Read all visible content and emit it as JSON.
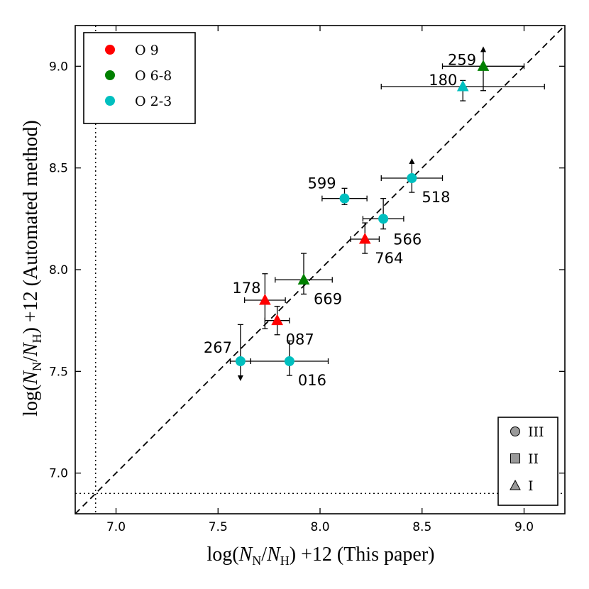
{
  "chart_data": {
    "type": "scatter",
    "xlabel_parts": {
      "pre": "log(",
      "num": "N",
      "num_sub": "N",
      "slash": "/",
      "den": "N",
      "den_sub": "H",
      "post": ") +12 (This paper)"
    },
    "ylabel_parts": {
      "pre": "log(",
      "num": "N",
      "num_sub": "N",
      "slash": "/",
      "den": "N",
      "den_sub": "H",
      "post": ") +12 (Automated method)"
    },
    "xlim": [
      6.8,
      9.2
    ],
    "ylim": [
      6.8,
      9.2
    ],
    "xticks": [
      7.0,
      7.5,
      8.0,
      8.5,
      9.0
    ],
    "yticks": [
      7.0,
      7.5,
      8.0,
      8.5,
      9.0
    ],
    "xtick_labels": [
      "7.0",
      "7.5",
      "8.0",
      "8.5",
      "9.0"
    ],
    "ytick_labels": [
      "7.0",
      "7.5",
      "8.0",
      "8.5",
      "9.0"
    ],
    "one_to_one_line": true,
    "detection_limit": {
      "x": 6.9,
      "y": 6.9
    },
    "colors": {
      "O 9": "#ff0000",
      "O 6-8": "#008000",
      "O 2-3": "#00bfbf"
    },
    "legend_spectral": {
      "placement": "top-left",
      "entries": [
        {
          "label": "O 9",
          "color": "#ff0000"
        },
        {
          "label": "O 6-8",
          "color": "#008000"
        },
        {
          "label": "O 2-3",
          "color": "#00bfbf"
        }
      ]
    },
    "legend_lum": {
      "placement": "bottom-right",
      "entries": [
        {
          "label": "III",
          "marker": "circle"
        },
        {
          "label": "II",
          "marker": "square"
        },
        {
          "label": "I",
          "marker": "triangle"
        }
      ]
    },
    "points": [
      {
        "label": "259",
        "x": 8.8,
        "y": 9.0,
        "xerr": [
          0.2,
          0.2
        ],
        "yerr": [
          0.12,
          0.0
        ],
        "limit": "lower",
        "marker": "triangle",
        "group": "O 6-8"
      },
      {
        "label": "180",
        "x": 8.7,
        "y": 8.9,
        "xerr": [
          0.4,
          0.4
        ],
        "yerr": [
          0.07,
          0.03
        ],
        "limit": null,
        "marker": "triangle",
        "group": "O 2-3"
      },
      {
        "label": "518",
        "x": 8.45,
        "y": 8.45,
        "xerr": [
          0.15,
          0.15
        ],
        "yerr": [
          0.07,
          0.0
        ],
        "limit": "lower",
        "marker": "circle",
        "group": "O 2-3"
      },
      {
        "label": "599",
        "x": 8.12,
        "y": 8.35,
        "xerr": [
          0.11,
          0.11
        ],
        "yerr": [
          0.03,
          0.05
        ],
        "limit": null,
        "marker": "circle",
        "group": "O 2-3"
      },
      {
        "label": "566",
        "x": 8.31,
        "y": 8.25,
        "xerr": [
          0.1,
          0.1
        ],
        "yerr": [
          0.05,
          0.1
        ],
        "limit": null,
        "marker": "circle",
        "group": "O 2-3"
      },
      {
        "label": "764",
        "x": 8.22,
        "y": 8.15,
        "xerr": [
          0.07,
          0.07
        ],
        "yerr": [
          0.07,
          0.08
        ],
        "limit": null,
        "marker": "triangle",
        "group": "O 9"
      },
      {
        "label": "669",
        "x": 7.92,
        "y": 7.95,
        "xerr": [
          0.14,
          0.14
        ],
        "yerr": [
          0.07,
          0.13
        ],
        "limit": null,
        "marker": "triangle",
        "group": "O 6-8"
      },
      {
        "label": "178",
        "x": 7.73,
        "y": 7.85,
        "xerr": [
          0.1,
          0.1
        ],
        "yerr": [
          0.14,
          0.13
        ],
        "limit": null,
        "marker": "triangle",
        "group": "O 9"
      },
      {
        "label": "087",
        "x": 7.79,
        "y": 7.75,
        "xerr": [
          0.06,
          0.06
        ],
        "yerr": [
          0.07,
          0.07
        ],
        "limit": null,
        "marker": "triangle",
        "group": "O 9"
      },
      {
        "label": "267",
        "x": 7.61,
        "y": 7.55,
        "xerr": [
          0.05,
          0.05
        ],
        "yerr": [
          0.0,
          0.18
        ],
        "limit": "upper",
        "marker": "circle",
        "group": "O 2-3"
      },
      {
        "label": "016",
        "x": 7.85,
        "y": 7.55,
        "xerr": [
          0.19,
          0.19
        ],
        "yerr": [
          0.07,
          0.1
        ],
        "limit": null,
        "marker": "circle",
        "group": "O 2-3"
      }
    ]
  }
}
